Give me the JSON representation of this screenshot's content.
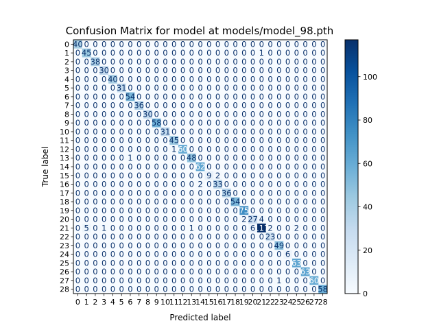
{
  "chart_data": {
    "type": "heatmap",
    "title": "Confusion Matrix for model at models/model_98.pth",
    "xlabel": "Predicted label",
    "ylabel": "True label",
    "x_ticks": [
      "0",
      "1",
      "2",
      "3",
      "4",
      "5",
      "6",
      "7",
      "8",
      "9",
      "10",
      "11",
      "12",
      "13",
      "14",
      "15",
      "16",
      "17",
      "18",
      "19",
      "20",
      "21",
      "22",
      "23",
      "24",
      "25",
      "26",
      "27",
      "28"
    ],
    "y_ticks": [
      "0",
      "1",
      "2",
      "3",
      "4",
      "5",
      "6",
      "7",
      "8",
      "9",
      "10",
      "11",
      "12",
      "13",
      "14",
      "15",
      "16",
      "17",
      "18",
      "19",
      "20",
      "21",
      "22",
      "23",
      "24",
      "25",
      "26",
      "27",
      "28"
    ],
    "colorbar": {
      "min": 0,
      "max": 117,
      "ticks": [
        0,
        20,
        40,
        60,
        80,
        100
      ],
      "colormap": "Blues"
    },
    "matrix": [
      [
        40,
        0,
        0,
        0,
        0,
        0,
        0,
        0,
        0,
        0,
        0,
        0,
        0,
        0,
        0,
        0,
        0,
        0,
        0,
        0,
        0,
        0,
        0,
        0,
        0,
        0,
        0,
        0,
        0
      ],
      [
        0,
        45,
        0,
        0,
        0,
        0,
        0,
        0,
        0,
        0,
        0,
        0,
        0,
        0,
        0,
        0,
        0,
        0,
        0,
        0,
        0,
        1,
        0,
        0,
        0,
        0,
        0,
        0,
        0
      ],
      [
        0,
        0,
        38,
        0,
        0,
        0,
        0,
        0,
        0,
        0,
        0,
        0,
        0,
        0,
        0,
        0,
        0,
        0,
        0,
        0,
        0,
        0,
        0,
        0,
        0,
        0,
        0,
        0,
        0
      ],
      [
        0,
        0,
        0,
        30,
        0,
        0,
        0,
        0,
        0,
        0,
        0,
        0,
        0,
        0,
        0,
        0,
        0,
        0,
        0,
        0,
        0,
        0,
        0,
        0,
        0,
        0,
        0,
        0,
        0
      ],
      [
        0,
        0,
        0,
        0,
        40,
        0,
        0,
        0,
        0,
        0,
        0,
        0,
        0,
        0,
        0,
        0,
        0,
        0,
        0,
        0,
        0,
        0,
        0,
        0,
        0,
        0,
        0,
        0,
        0
      ],
      [
        0,
        0,
        0,
        0,
        0,
        31,
        0,
        0,
        0,
        0,
        0,
        0,
        0,
        0,
        0,
        0,
        0,
        0,
        0,
        0,
        0,
        0,
        0,
        0,
        0,
        0,
        0,
        0,
        0
      ],
      [
        0,
        0,
        0,
        0,
        0,
        0,
        54,
        0,
        0,
        0,
        0,
        0,
        0,
        0,
        0,
        0,
        0,
        0,
        0,
        0,
        0,
        0,
        0,
        0,
        0,
        0,
        0,
        0,
        0
      ],
      [
        0,
        0,
        0,
        0,
        0,
        0,
        0,
        36,
        0,
        0,
        0,
        0,
        0,
        0,
        0,
        0,
        0,
        0,
        0,
        0,
        0,
        0,
        0,
        0,
        0,
        0,
        0,
        0,
        0
      ],
      [
        0,
        0,
        0,
        0,
        0,
        0,
        0,
        0,
        30,
        0,
        0,
        0,
        0,
        0,
        0,
        0,
        0,
        0,
        0,
        0,
        0,
        0,
        0,
        0,
        0,
        0,
        0,
        0,
        0
      ],
      [
        0,
        0,
        0,
        0,
        0,
        0,
        0,
        0,
        0,
        58,
        0,
        0,
        0,
        0,
        0,
        0,
        0,
        0,
        0,
        0,
        0,
        0,
        0,
        0,
        0,
        0,
        0,
        0,
        0
      ],
      [
        0,
        0,
        0,
        0,
        0,
        0,
        0,
        0,
        0,
        0,
        31,
        0,
        0,
        0,
        0,
        0,
        0,
        0,
        0,
        0,
        0,
        0,
        0,
        0,
        0,
        0,
        0,
        0,
        0
      ],
      [
        0,
        0,
        0,
        0,
        0,
        0,
        0,
        0,
        0,
        0,
        0,
        45,
        0,
        0,
        0,
        0,
        0,
        0,
        0,
        0,
        0,
        0,
        0,
        0,
        0,
        0,
        0,
        0,
        0
      ],
      [
        0,
        0,
        0,
        0,
        0,
        0,
        0,
        0,
        0,
        0,
        0,
        1,
        60,
        0,
        0,
        0,
        0,
        0,
        0,
        0,
        0,
        0,
        0,
        0,
        0,
        0,
        0,
        0,
        0
      ],
      [
        0,
        0,
        0,
        0,
        0,
        0,
        1,
        0,
        0,
        0,
        0,
        0,
        0,
        48,
        0,
        0,
        0,
        0,
        0,
        0,
        0,
        0,
        0,
        0,
        0,
        0,
        0,
        0,
        0
      ],
      [
        0,
        0,
        0,
        0,
        0,
        0,
        0,
        0,
        0,
        0,
        0,
        0,
        0,
        0,
        62,
        0,
        0,
        0,
        0,
        0,
        0,
        0,
        0,
        0,
        0,
        0,
        0,
        0,
        0
      ],
      [
        0,
        0,
        0,
        0,
        0,
        0,
        0,
        0,
        0,
        0,
        0,
        0,
        0,
        0,
        0,
        9,
        2,
        0,
        0,
        0,
        0,
        0,
        0,
        0,
        0,
        0,
        0,
        0,
        0
      ],
      [
        0,
        0,
        0,
        0,
        0,
        0,
        0,
        0,
        0,
        0,
        0,
        0,
        0,
        0,
        2,
        0,
        33,
        0,
        0,
        0,
        0,
        0,
        0,
        0,
        0,
        0,
        0,
        0,
        0
      ],
      [
        0,
        0,
        0,
        0,
        0,
        0,
        0,
        0,
        0,
        0,
        0,
        0,
        0,
        0,
        0,
        0,
        0,
        36,
        0,
        0,
        0,
        0,
        0,
        0,
        0,
        0,
        0,
        0,
        0
      ],
      [
        0,
        0,
        0,
        0,
        0,
        0,
        0,
        0,
        0,
        0,
        0,
        0,
        0,
        0,
        0,
        0,
        0,
        0,
        54,
        0,
        0,
        0,
        0,
        0,
        0,
        0,
        0,
        0,
        0
      ],
      [
        0,
        0,
        0,
        0,
        0,
        0,
        0,
        0,
        0,
        0,
        0,
        0,
        0,
        0,
        0,
        0,
        0,
        0,
        0,
        75,
        0,
        0,
        0,
        0,
        0,
        0,
        0,
        0,
        0
      ],
      [
        0,
        0,
        0,
        0,
        0,
        0,
        0,
        0,
        0,
        0,
        0,
        0,
        0,
        0,
        0,
        0,
        0,
        0,
        0,
        2,
        27,
        4,
        0,
        0,
        0,
        0,
        0,
        0,
        0
      ],
      [
        0,
        5,
        0,
        1,
        0,
        0,
        0,
        0,
        0,
        0,
        0,
        0,
        0,
        1,
        0,
        0,
        0,
        0,
        0,
        0,
        6,
        117,
        2,
        0,
        0,
        2,
        0,
        0,
        0
      ],
      [
        0,
        0,
        0,
        0,
        0,
        0,
        0,
        0,
        0,
        0,
        0,
        0,
        0,
        0,
        0,
        0,
        0,
        0,
        0,
        0,
        0,
        0,
        23,
        0,
        0,
        0,
        0,
        0,
        0
      ],
      [
        0,
        0,
        0,
        0,
        0,
        0,
        0,
        0,
        0,
        0,
        0,
        0,
        0,
        0,
        0,
        0,
        0,
        0,
        0,
        0,
        0,
        0,
        0,
        49,
        0,
        0,
        0,
        0,
        0
      ],
      [
        0,
        0,
        0,
        0,
        0,
        0,
        0,
        0,
        0,
        0,
        0,
        0,
        0,
        0,
        0,
        0,
        0,
        0,
        0,
        0,
        0,
        0,
        0,
        0,
        6,
        0,
        0,
        0,
        0
      ],
      [
        0,
        0,
        0,
        0,
        0,
        0,
        0,
        0,
        0,
        0,
        0,
        0,
        0,
        0,
        0,
        0,
        0,
        0,
        0,
        0,
        0,
        0,
        0,
        0,
        0,
        63,
        0,
        0,
        0
      ],
      [
        0,
        0,
        0,
        0,
        0,
        0,
        0,
        0,
        0,
        0,
        0,
        0,
        0,
        0,
        0,
        0,
        0,
        0,
        0,
        0,
        0,
        0,
        0,
        0,
        0,
        0,
        63,
        0,
        0
      ],
      [
        0,
        0,
        0,
        0,
        0,
        0,
        0,
        0,
        0,
        0,
        0,
        0,
        0,
        0,
        0,
        0,
        0,
        0,
        0,
        0,
        0,
        0,
        0,
        1,
        0,
        0,
        0,
        60,
        0
      ],
      [
        0,
        0,
        0,
        0,
        0,
        0,
        0,
        0,
        0,
        0,
        0,
        0,
        0,
        0,
        0,
        0,
        0,
        0,
        0,
        0,
        0,
        0,
        0,
        0,
        0,
        0,
        0,
        0,
        58
      ]
    ]
  }
}
